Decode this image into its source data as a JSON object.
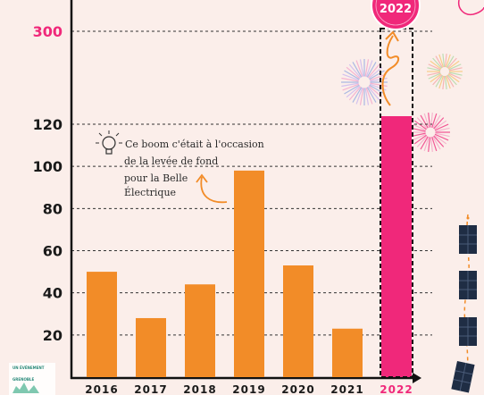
{
  "chart_data": {
    "type": "bar",
    "categories": [
      "2016",
      "2017",
      "2018",
      "2019",
      "2020",
      "2021",
      "2022"
    ],
    "values": [
      50,
      28,
      44,
      98,
      53,
      23,
      300
    ],
    "highlight": {
      "category": "2022",
      "color": "#f0287a",
      "badge": "2022"
    },
    "y_ticks": [
      20,
      40,
      60,
      80,
      100,
      120,
      300
    ],
    "y_break": {
      "from": 120,
      "to": 300
    },
    "bar_color": "#f28c28",
    "grid": "dashed",
    "annotation": "Ce boom c'était à l'occasion de la levée de fond pour la Belle Électrique"
  },
  "annotation_lines": [
    "Ce boom c'était à l'occasion",
    "de la levée de fond",
    "pour la Belle",
    "Électrique"
  ],
  "logo": {
    "top_text": "UN ÉVÉNEMENT",
    "brand": "GRENOBLE"
  },
  "colors": {
    "background": "#fbeeea",
    "accent": "#f0287a",
    "bar": "#f28c28"
  }
}
